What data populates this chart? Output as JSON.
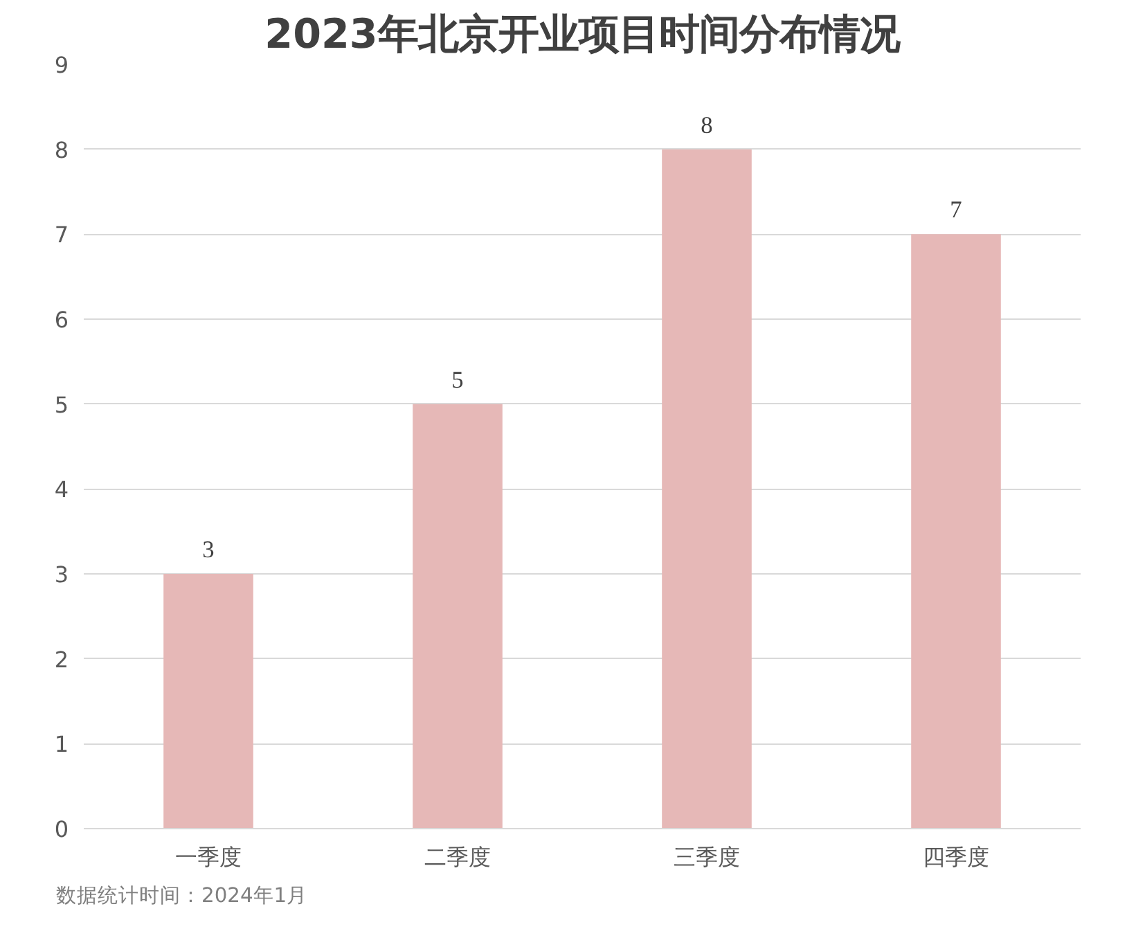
{
  "chart_data": {
    "type": "bar",
    "title": "2023年北京开业项目时间分布情况",
    "categories": [
      "一季度",
      "二季度",
      "三季度",
      "四季度"
    ],
    "values": [
      3,
      5,
      8,
      7
    ],
    "color": "#e6b8b7",
    "ylim": [
      0,
      9
    ],
    "yticks": [
      0,
      1,
      2,
      3,
      4,
      5,
      6,
      7,
      8,
      9
    ],
    "grid": "y",
    "data_labels": true,
    "annotations": [
      "数据统计时间：2024年1月"
    ]
  }
}
